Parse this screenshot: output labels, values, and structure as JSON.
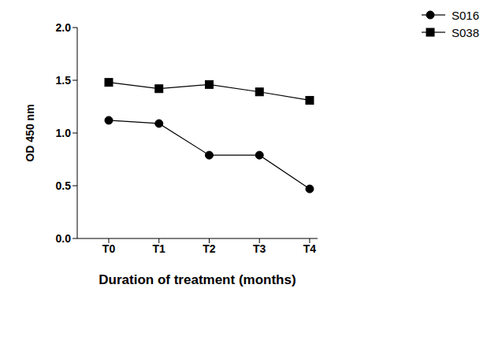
{
  "chart_data": {
    "type": "line",
    "x_label": "Duration of treatment (months)",
    "y_label": "OD 450 nm",
    "categories": [
      "T0",
      "T1",
      "T2",
      "T3",
      "T4"
    ],
    "series": [
      {
        "name": "S016",
        "color": "#000000",
        "marker": "circle",
        "line_style": "solid",
        "values": [
          1.12,
          1.09,
          0.79,
          0.79,
          0.47
        ]
      },
      {
        "name": "S038",
        "color": "#000000",
        "marker": "square",
        "line_style": "solid",
        "values": [
          1.48,
          1.42,
          1.46,
          1.39,
          1.31
        ]
      }
    ],
    "ylim": [
      0,
      2
    ],
    "yticks": [
      {
        "value": 0,
        "label": "0.0"
      },
      0.5,
      {
        "value": 1,
        "label": "1.0"
      },
      1.5,
      {
        "value": 2,
        "label": "2.0"
      }
    ],
    "grid": false,
    "legend": "top-right"
  }
}
